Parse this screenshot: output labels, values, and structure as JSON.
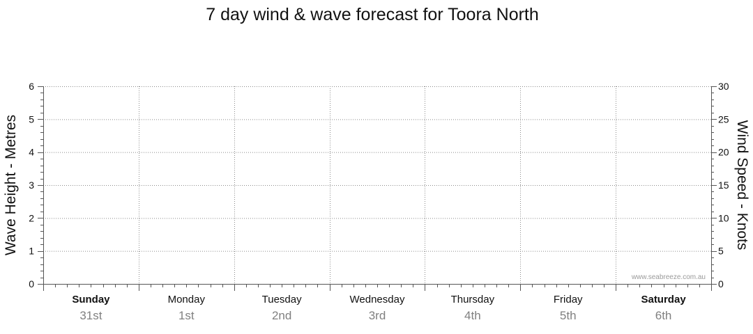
{
  "chart_data": {
    "type": "line",
    "title": "7 day wind & wave forecast for Toora North",
    "ylabel_left": "Wave Height - Metres",
    "ylabel_right": "Wind Speed - Knots",
    "y_left": {
      "min": 0,
      "max": 6,
      "ticks": [
        "0",
        "1",
        "2",
        "3",
        "4",
        "5",
        "6"
      ]
    },
    "y_right": {
      "min": 0,
      "max": 30,
      "ticks": [
        "0",
        "5",
        "10",
        "15",
        "20",
        "25",
        "30"
      ]
    },
    "days": [
      {
        "name": "Sunday",
        "date": "31st",
        "bold": true
      },
      {
        "name": "Monday",
        "date": "1st",
        "bold": false
      },
      {
        "name": "Tuesday",
        "date": "2nd",
        "bold": false
      },
      {
        "name": "Wednesday",
        "date": "3rd",
        "bold": false
      },
      {
        "name": "Thursday",
        "date": "4th",
        "bold": false
      },
      {
        "name": "Friday",
        "date": "5th",
        "bold": false
      },
      {
        "name": "Saturday",
        "date": "6th",
        "bold": true
      }
    ],
    "series": [],
    "grid": true,
    "watermark": "www.seabreeze.com.au"
  }
}
